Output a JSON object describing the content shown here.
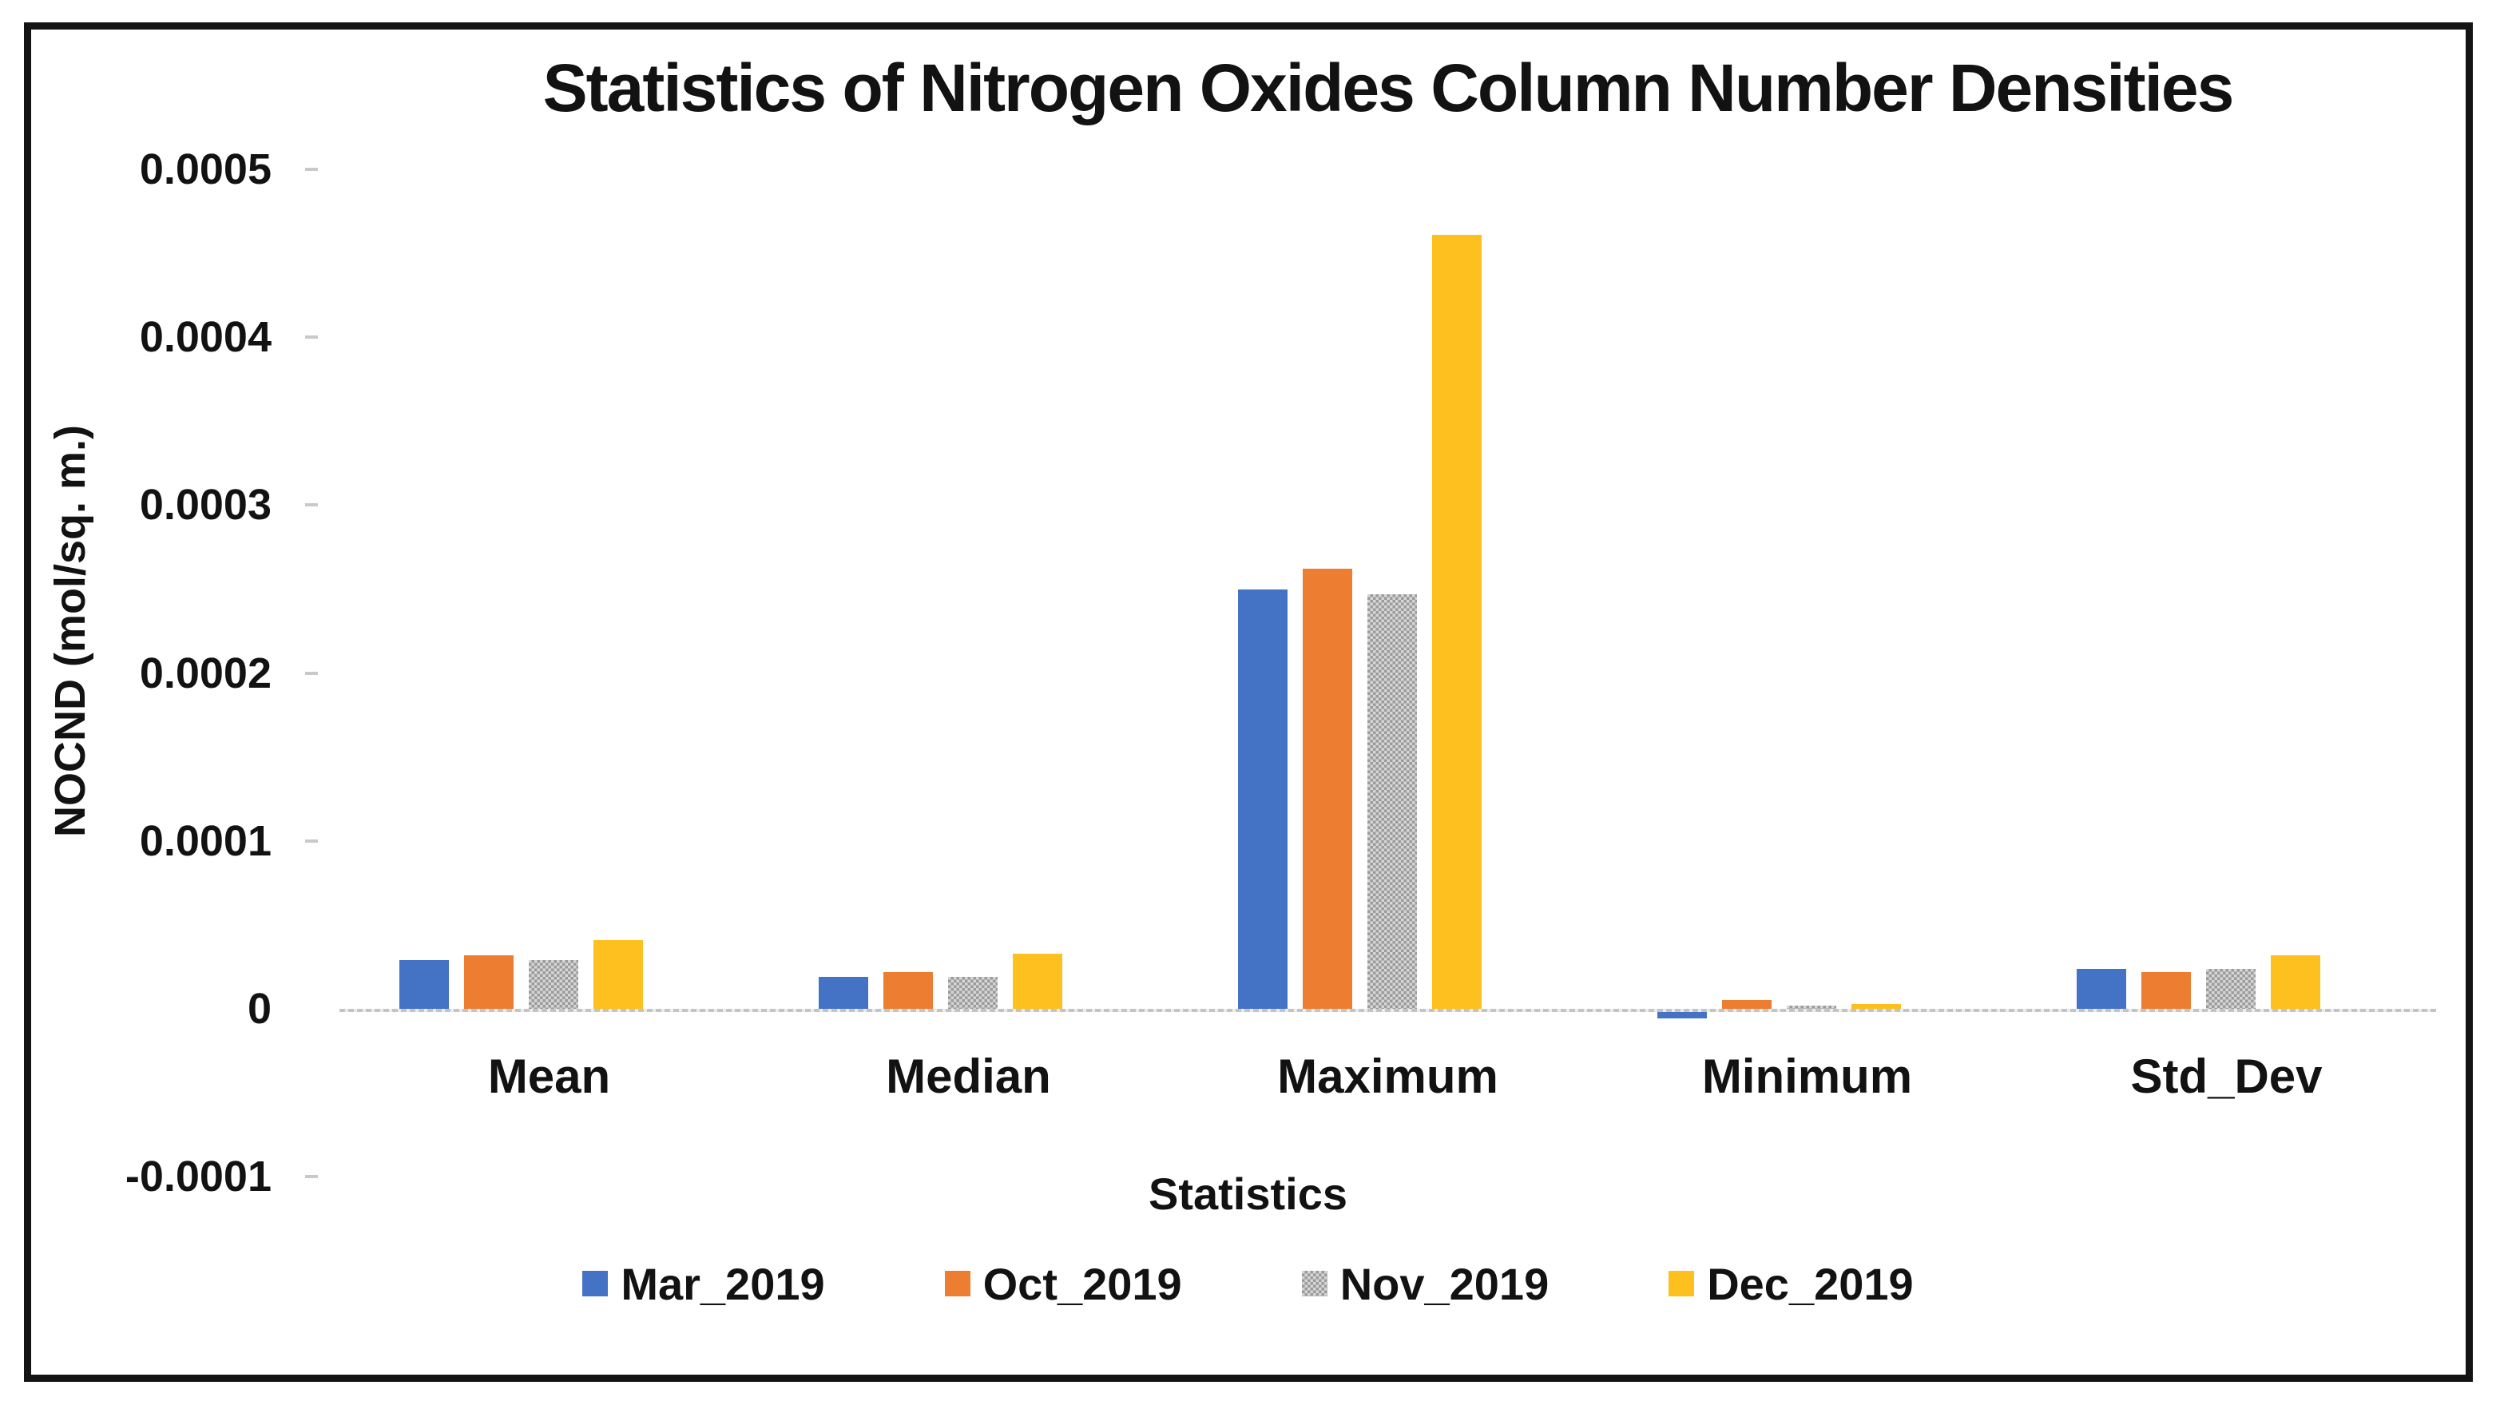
{
  "chart_data": {
    "type": "bar",
    "title": "Statistics of Nitrogen Oxides Column Number Densities",
    "xlabel": "Statistics",
    "ylabel": "NOCND (mol/sq. m.)",
    "categories": [
      "Mean",
      "Median",
      "Maximum",
      "Minimum",
      "Std_Dev"
    ],
    "series": [
      {
        "name": "Mar_2019",
        "color": "#4472C4",
        "pattern": false,
        "values": [
          2.9e-05,
          1.9e-05,
          0.00025,
          -4e-06,
          2.4e-05
        ]
      },
      {
        "name": "Oct_2019",
        "color": "#ED7D31",
        "pattern": false,
        "values": [
          3.2e-05,
          2.2e-05,
          0.000262,
          5e-06,
          2.2e-05
        ]
      },
      {
        "name": "Nov_2019",
        "color": "#A6A6A6",
        "pattern": true,
        "values": [
          2.9e-05,
          1.9e-05,
          0.000247,
          2e-06,
          2.4e-05
        ]
      },
      {
        "name": "Dec_2019",
        "color": "#FDC01E",
        "pattern": false,
        "values": [
          4.1e-05,
          3.3e-05,
          0.000461,
          3e-06,
          3.2e-05
        ]
      }
    ],
    "ylim": [
      -0.0001,
      0.0005
    ],
    "yticks": {
      "values": [
        0.0005,
        0.0004,
        0.0003,
        0.0002,
        0.0001,
        0,
        -0.0001
      ],
      "labels": [
        "0.0005",
        "0.0004",
        "0.0003",
        "0.0002",
        "0.0001",
        "0",
        "-0.0001"
      ]
    },
    "legend_position": "bottom",
    "grid": false,
    "axis_line_color": "#c8c8c8",
    "frame_border_color": "#141414",
    "text_color": "#121212"
  }
}
